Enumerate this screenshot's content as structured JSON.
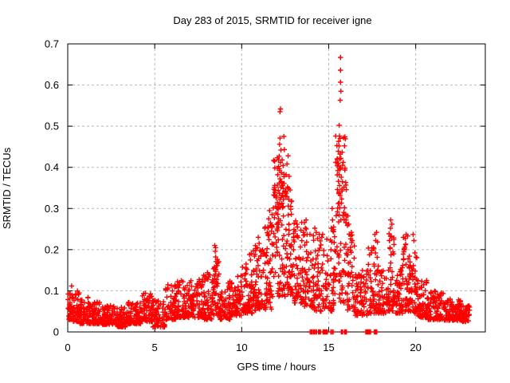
{
  "chart_data": {
    "type": "scatter",
    "title": "Day 283 of 2015, SRMTID for receiver igne",
    "xlabel": "GPS time / hours",
    "ylabel": "SRMTID / TECUs",
    "xlim": [
      0,
      24
    ],
    "ylim": [
      0,
      0.7
    ],
    "xticks": [
      {
        "v": 0,
        "label": "0"
      },
      {
        "v": 5,
        "label": "5"
      },
      {
        "v": 10,
        "label": "10"
      },
      {
        "v": 15,
        "label": "15"
      },
      {
        "v": 20,
        "label": "20"
      }
    ],
    "yticks": [
      {
        "v": 0,
        "label": "0"
      },
      {
        "v": 0.1,
        "label": "0.1"
      },
      {
        "v": 0.2,
        "label": "0.2"
      },
      {
        "v": 0.3,
        "label": "0.3"
      },
      {
        "v": 0.4,
        "label": "0.4"
      },
      {
        "v": 0.5,
        "label": "0.5"
      },
      {
        "v": 0.6,
        "label": "0.6"
      },
      {
        "v": 0.7,
        "label": "0.7"
      }
    ],
    "grid": {
      "visible": true,
      "style": "dashed"
    },
    "legend": "none",
    "marker_shape": "plus",
    "marker_color": "#ff0000",
    "grid_color": "#b8b8b8",
    "axis_color": "#000000",
    "background_color": "#ffffff",
    "seed": 11,
    "density_profile": [
      [
        0.0,
        0.3,
        0.03,
        0.115,
        35
      ],
      [
        0.3,
        0.7,
        0.025,
        0.1,
        40
      ],
      [
        0.7,
        1.2,
        0.02,
        0.085,
        50
      ],
      [
        1.2,
        2.0,
        0.02,
        0.075,
        80
      ],
      [
        2.0,
        2.8,
        0.018,
        0.066,
        80
      ],
      [
        2.8,
        3.4,
        0.012,
        0.06,
        60
      ],
      [
        3.4,
        4.2,
        0.02,
        0.072,
        80
      ],
      [
        4.2,
        4.9,
        0.025,
        0.095,
        70
      ],
      [
        4.9,
        5.6,
        0.012,
        0.078,
        65
      ],
      [
        5.6,
        6.2,
        0.03,
        0.12,
        60
      ],
      [
        6.2,
        7.0,
        0.035,
        0.125,
        80
      ],
      [
        7.0,
        7.8,
        0.035,
        0.13,
        80
      ],
      [
        7.8,
        8.35,
        0.03,
        0.145,
        55
      ],
      [
        8.35,
        8.7,
        0.04,
        0.19,
        40,
        1.3
      ],
      [
        8.7,
        9.4,
        0.03,
        0.125,
        70
      ],
      [
        9.4,
        10.0,
        0.04,
        0.14,
        60
      ],
      [
        10.0,
        10.6,
        0.045,
        0.16,
        60
      ],
      [
        10.6,
        11.2,
        0.05,
        0.21,
        65,
        1.5
      ],
      [
        11.2,
        11.8,
        0.055,
        0.27,
        65,
        1.5
      ],
      [
        11.8,
        12.5,
        0.08,
        0.43,
        85,
        1.2
      ],
      [
        12.5,
        12.9,
        0.09,
        0.35,
        50,
        1.3
      ],
      [
        12.9,
        13.5,
        0.07,
        0.27,
        60,
        1.5
      ],
      [
        13.5,
        14.1,
        0.06,
        0.26,
        60,
        1.6
      ],
      [
        14.1,
        14.75,
        0.05,
        0.24,
        60,
        1.6
      ],
      [
        14.75,
        15.35,
        0.05,
        0.25,
        55,
        1.6
      ],
      [
        15.35,
        16.05,
        0.07,
        0.48,
        70,
        1.2
      ],
      [
        16.05,
        16.5,
        0.05,
        0.26,
        45,
        1.6
      ],
      [
        16.5,
        17.2,
        0.04,
        0.15,
        65
      ],
      [
        17.2,
        17.95,
        0.045,
        0.22,
        70,
        1.7
      ],
      [
        17.95,
        18.45,
        0.045,
        0.15,
        50
      ],
      [
        18.45,
        18.75,
        0.05,
        0.26,
        35,
        1.6
      ],
      [
        18.75,
        19.25,
        0.045,
        0.16,
        50
      ],
      [
        19.25,
        19.65,
        0.05,
        0.235,
        45,
        1.6
      ],
      [
        19.65,
        20.15,
        0.045,
        0.19,
        55,
        1.7
      ],
      [
        20.15,
        20.7,
        0.035,
        0.125,
        60
      ],
      [
        20.7,
        21.6,
        0.03,
        0.1,
        90
      ],
      [
        21.6,
        22.6,
        0.028,
        0.08,
        100
      ],
      [
        22.6,
        23.15,
        0.025,
        0.065,
        55
      ]
    ],
    "peak_points": [
      [
        8.45,
        0.21
      ],
      [
        8.48,
        0.196
      ],
      [
        8.5,
        0.205
      ],
      [
        8.5,
        0.182
      ],
      [
        8.52,
        0.171
      ],
      [
        8.55,
        0.161
      ],
      [
        8.46,
        0.153
      ],
      [
        8.5,
        0.147
      ],
      [
        8.43,
        0.136
      ],
      [
        8.56,
        0.127
      ],
      [
        8.52,
        0.118
      ],
      [
        10.25,
        0.165
      ],
      [
        10.3,
        0.152
      ],
      [
        10.45,
        0.188
      ],
      [
        10.5,
        0.175
      ],
      [
        10.55,
        0.19
      ],
      [
        10.9,
        0.205
      ],
      [
        10.95,
        0.23
      ],
      [
        11.0,
        0.215
      ],
      [
        11.05,
        0.198
      ],
      [
        11.1,
        0.185
      ],
      [
        11.5,
        0.255
      ],
      [
        11.55,
        0.275
      ],
      [
        11.6,
        0.295
      ],
      [
        11.65,
        0.265
      ],
      [
        11.7,
        0.245
      ],
      [
        11.75,
        0.285
      ],
      [
        11.95,
        0.305
      ],
      [
        12.0,
        0.33
      ],
      [
        12.05,
        0.357
      ],
      [
        12.07,
        0.382
      ],
      [
        12.1,
        0.302
      ],
      [
        12.1,
        0.344
      ],
      [
        12.12,
        0.402
      ],
      [
        12.14,
        0.31
      ],
      [
        12.15,
        0.362
      ],
      [
        12.15,
        0.427
      ],
      [
        12.17,
        0.336
      ],
      [
        12.18,
        0.392
      ],
      [
        12.18,
        0.456
      ],
      [
        12.2,
        0.322
      ],
      [
        12.2,
        0.372
      ],
      [
        12.2,
        0.471
      ],
      [
        12.2,
        0.535
      ],
      [
        12.22,
        0.303
      ],
      [
        12.22,
        0.412
      ],
      [
        12.23,
        0.542
      ],
      [
        12.25,
        0.352
      ],
      [
        12.25,
        0.442
      ],
      [
        12.27,
        0.327
      ],
      [
        12.28,
        0.387
      ],
      [
        12.3,
        0.312
      ],
      [
        12.3,
        0.363
      ],
      [
        12.32,
        0.418
      ],
      [
        12.35,
        0.337
      ],
      [
        12.38,
        0.305
      ],
      [
        12.4,
        0.322
      ],
      [
        12.42,
        0.475
      ],
      [
        12.45,
        0.443
      ],
      [
        12.5,
        0.34
      ],
      [
        12.55,
        0.382
      ],
      [
        12.6,
        0.408
      ],
      [
        12.63,
        0.352
      ],
      [
        12.67,
        0.428
      ],
      [
        12.7,
        0.322
      ],
      [
        12.73,
        0.378
      ],
      [
        12.78,
        0.345
      ],
      [
        12.82,
        0.305
      ],
      [
        12.87,
        0.318
      ],
      [
        13.1,
        0.27
      ],
      [
        13.2,
        0.255
      ],
      [
        13.55,
        0.242
      ],
      [
        13.6,
        0.266
      ],
      [
        13.66,
        0.252
      ],
      [
        13.7,
        0.272
      ],
      [
        13.76,
        0.237
      ],
      [
        14.2,
        0.252
      ],
      [
        14.28,
        0.242
      ],
      [
        14.36,
        0.227
      ],
      [
        14.6,
        0.23
      ],
      [
        15.15,
        0.252
      ],
      [
        15.2,
        0.3
      ],
      [
        15.22,
        0.272
      ],
      [
        15.28,
        0.255
      ],
      [
        15.5,
        0.292
      ],
      [
        15.5,
        0.346
      ],
      [
        15.52,
        0.392
      ],
      [
        15.55,
        0.312
      ],
      [
        15.55,
        0.41
      ],
      [
        15.55,
        0.439
      ],
      [
        15.56,
        0.366
      ],
      [
        15.57,
        0.463
      ],
      [
        15.58,
        0.339
      ],
      [
        15.6,
        0.284
      ],
      [
        15.6,
        0.382
      ],
      [
        15.6,
        0.402
      ],
      [
        15.6,
        0.452
      ],
      [
        15.6,
        0.502
      ],
      [
        15.62,
        0.356
      ],
      [
        15.62,
        0.476
      ],
      [
        15.63,
        0.302
      ],
      [
        15.65,
        0.432
      ],
      [
        15.66,
        0.332
      ],
      [
        15.66,
        0.563
      ],
      [
        15.68,
        0.398
      ],
      [
        15.68,
        0.607
      ],
      [
        15.68,
        0.636
      ],
      [
        15.68,
        0.667
      ],
      [
        15.7,
        0.272
      ],
      [
        15.7,
        0.422
      ],
      [
        15.7,
        0.585
      ],
      [
        15.72,
        0.376
      ],
      [
        15.74,
        0.323
      ],
      [
        15.76,
        0.347
      ],
      [
        15.85,
        0.472
      ],
      [
        15.83,
        0.412
      ],
      [
        15.88,
        0.352
      ],
      [
        15.9,
        0.302
      ],
      [
        15.95,
        0.286
      ],
      [
        16.0,
        0.272
      ],
      [
        16.1,
        0.282
      ],
      [
        16.15,
        0.262
      ],
      [
        16.3,
        0.242
      ],
      [
        16.35,
        0.222
      ],
      [
        17.45,
        0.192
      ],
      [
        17.6,
        0.202
      ],
      [
        17.65,
        0.237
      ],
      [
        17.7,
        0.222
      ],
      [
        17.75,
        0.242
      ],
      [
        18.5,
        0.222
      ],
      [
        18.55,
        0.252
      ],
      [
        18.56,
        0.272
      ],
      [
        18.6,
        0.232
      ],
      [
        18.63,
        0.262
      ],
      [
        19.35,
        0.202
      ],
      [
        19.4,
        0.227
      ],
      [
        19.45,
        0.237
      ],
      [
        19.42,
        0.212
      ],
      [
        19.85,
        0.237
      ],
      [
        19.9,
        0.222
      ],
      [
        19.95,
        0.192
      ]
    ],
    "zero_runs": [
      [
        13.82,
        14.55,
        16
      ],
      [
        14.65,
        14.97,
        12
      ],
      [
        15.1,
        15.27,
        6
      ],
      [
        15.72,
        16.02,
        12
      ],
      [
        17.07,
        17.5,
        12
      ],
      [
        17.6,
        17.78,
        8
      ]
    ]
  }
}
